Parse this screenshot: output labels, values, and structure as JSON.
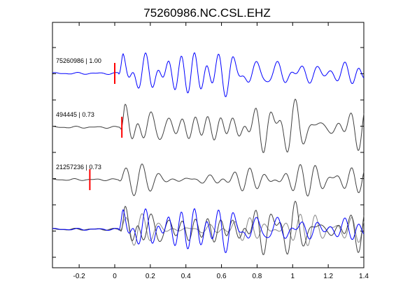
{
  "chart_data": {
    "type": "line",
    "title": "75260986.NC.CSL.EHZ",
    "xlabel": "",
    "ylabel": "",
    "xlim": [
      -0.35,
      1.4
    ],
    "xticks": [
      -0.2,
      0,
      0.2,
      0.4,
      0.6,
      0.8,
      1,
      1.2,
      1.4
    ],
    "xtick_labels": [
      "-0.2",
      "0",
      "0.2",
      "0.4",
      "0.6",
      "0.8",
      "1",
      "1.2",
      "1.4"
    ],
    "grid": false,
    "colors": {
      "reference": "#0000ff",
      "match": "#404040",
      "overlay_match": "#888888",
      "pick": "#ff0000"
    },
    "traces": [
      {
        "label": "75260986 | 1.00",
        "event_id": "75260986",
        "correlation": 1.0,
        "pick_time": 0.0,
        "color": "#0000ff",
        "role": "reference"
      },
      {
        "label": "494445 | 0.73",
        "event_id": "494445",
        "correlation": 0.73,
        "pick_time": 0.04,
        "color": "#404040",
        "role": "match"
      },
      {
        "label": "21257236 | 0.73",
        "event_id": "21257236",
        "correlation": 0.73,
        "pick_time": -0.14,
        "color": "#404040",
        "role": "match"
      }
    ],
    "overlay": {
      "label": "",
      "traces": [
        "75260986",
        "494445",
        "21257236"
      ]
    }
  }
}
